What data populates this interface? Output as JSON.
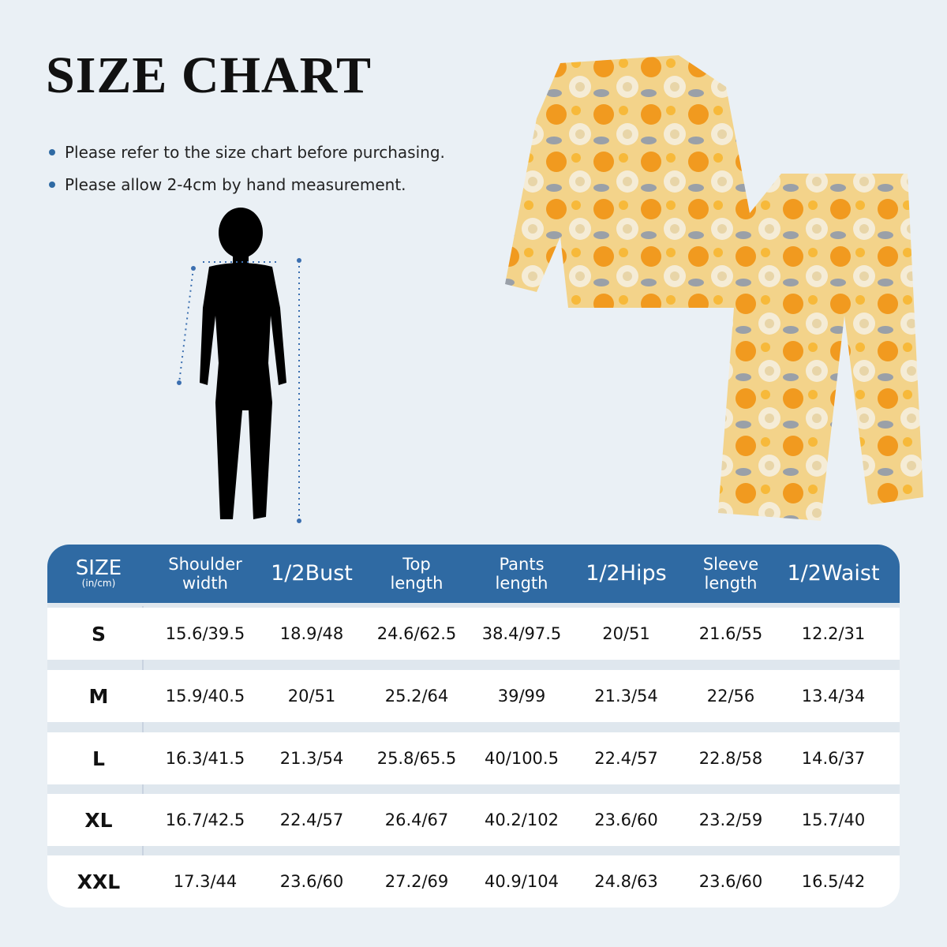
{
  "title": "SIZE CHART",
  "notes": [
    "Please refer to the size chart before purchasing.",
    "Please allow 2-4cm by hand measurement."
  ],
  "colors": {
    "header": "#2f6aa3",
    "background": "#eaf0f5",
    "bullet": "#2f6aa3"
  },
  "table": {
    "headers": [
      {
        "line1": "SIZE",
        "line2": "(in/cm)"
      },
      {
        "line1": "Shoulder",
        "line2": "width"
      },
      {
        "line1": "1/2Bust",
        "line2": ""
      },
      {
        "line1": "Top",
        "line2": "length"
      },
      {
        "line1": "Pants",
        "line2": "length"
      },
      {
        "line1": "1/2Hips",
        "line2": ""
      },
      {
        "line1": "Sleeve",
        "line2": "length"
      },
      {
        "line1": "1/2Waist",
        "line2": ""
      }
    ],
    "rows": [
      [
        "S",
        "15.6/39.5",
        "18.9/48",
        "24.6/62.5",
        "38.4/97.5",
        "20/51",
        "21.6/55",
        "12.2/31"
      ],
      [
        "M",
        "15.9/40.5",
        "20/51",
        "25.2/64",
        "39/99",
        "21.3/54",
        "22/56",
        "13.4/34"
      ],
      [
        "L",
        "16.3/41.5",
        "21.3/54",
        "25.8/65.5",
        "40/100.5",
        "22.4/57",
        "22.8/58",
        "14.6/37"
      ],
      [
        "XL",
        "16.7/42.5",
        "22.4/57",
        "26.4/67",
        "40.2/102",
        "23.6/60",
        "23.2/59",
        "15.7/40"
      ],
      [
        "XXL",
        "17.3/44",
        "23.6/60",
        "27.2/69",
        "40.9/104",
        "24.8/63",
        "23.6/60",
        "16.5/42"
      ]
    ]
  }
}
